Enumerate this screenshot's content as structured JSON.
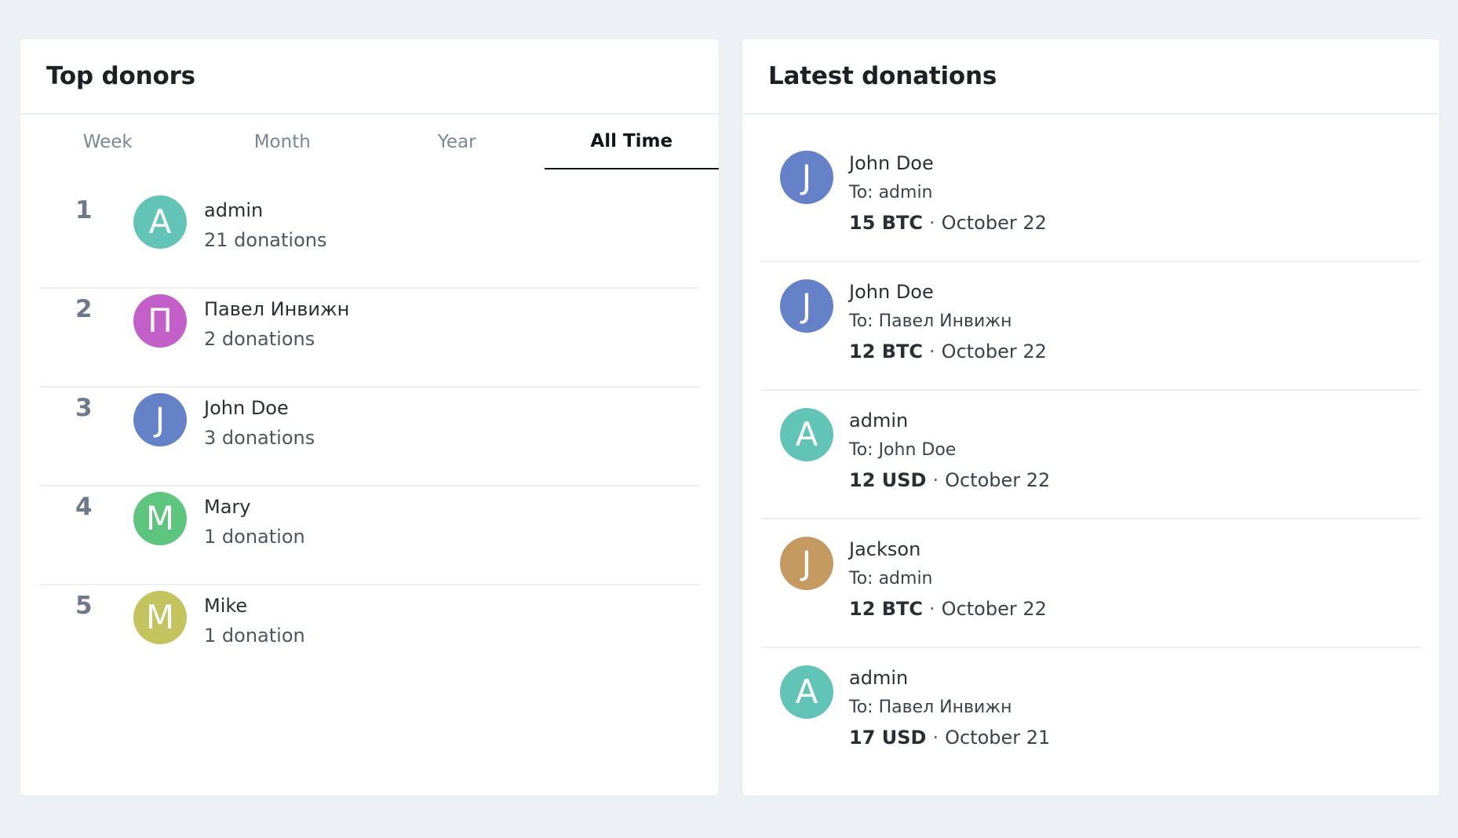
{
  "top_donors": {
    "title": "Top donors",
    "tabs": [
      {
        "label": "Week",
        "active": false
      },
      {
        "label": "Month",
        "active": false
      },
      {
        "label": "Year",
        "active": false
      },
      {
        "label": "All Time",
        "active": true
      }
    ],
    "rows": [
      {
        "rank": "1",
        "initial": "A",
        "avatar_color": "#62c4b6",
        "name": "admin",
        "count": "21 donations"
      },
      {
        "rank": "2",
        "initial": "П",
        "avatar_color": "#c25fc9",
        "name": "Павел Инвижн",
        "count": "2 donations"
      },
      {
        "rank": "3",
        "initial": "J",
        "avatar_color": "#6582c9",
        "name": "John Doe",
        "count": "3 donations"
      },
      {
        "rank": "4",
        "initial": "M",
        "avatar_color": "#5dc57e",
        "name": "Mary",
        "count": "1 donation"
      },
      {
        "rank": "5",
        "initial": "M",
        "avatar_color": "#c3c35f",
        "name": "Mike",
        "count": "1 donation"
      }
    ]
  },
  "latest_donations": {
    "title": "Latest donations",
    "separator": "·",
    "rows": [
      {
        "initial": "J",
        "avatar_color": "#6582c9",
        "from": "John Doe",
        "to": "To: admin",
        "amount": "15 BTC",
        "date": "October 22"
      },
      {
        "initial": "J",
        "avatar_color": "#6582c9",
        "from": "John Doe",
        "to": "To: Павел Инвижн",
        "amount": "12 BTC",
        "date": "October 22"
      },
      {
        "initial": "A",
        "avatar_color": "#62c4b6",
        "from": "admin",
        "to": "To: John Doe",
        "amount": "12 USD",
        "date": "October 22"
      },
      {
        "initial": "J",
        "avatar_color": "#c59a61",
        "from": "Jackson",
        "to": "To: admin",
        "amount": "12 BTC",
        "date": "October 22"
      },
      {
        "initial": "A",
        "avatar_color": "#62c4b6",
        "from": "admin",
        "to": "To: Павел Инвижн",
        "amount": "17 USD",
        "date": "October 21"
      }
    ]
  }
}
